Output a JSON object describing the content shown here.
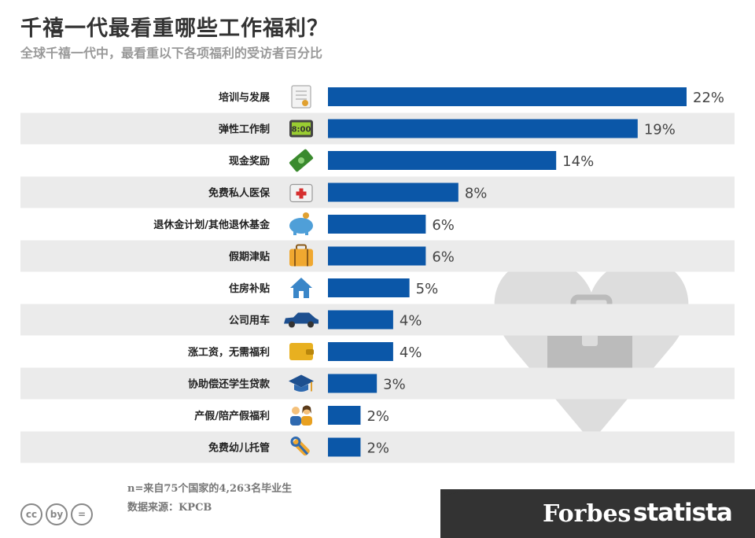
{
  "header": {
    "title": "千禧一代最看重哪些工作福利？",
    "subtitle": "全球千禧一代中，最看重以下各项福利的受访者百分比"
  },
  "chart_data": {
    "type": "bar",
    "orientation": "horizontal",
    "title": "千禧一代最看重哪些工作福利？",
    "subtitle": "全球千禧一代中，最看重以下各项福利的受访者百分比",
    "unit": "%",
    "xlim": [
      0,
      22
    ],
    "categories": [
      "培训与发展",
      "弹性工作制",
      "现金奖励",
      "免费私人医保",
      "退休金计划/其他退休基金",
      "假期津贴",
      "住房补贴",
      "公司用车",
      "涨工资，无需福利",
      "协助偿还学生贷款",
      "产假/陪产假福利",
      "免费幼儿托管"
    ],
    "values": [
      22,
      19,
      14,
      8,
      6,
      6,
      5,
      4,
      4,
      3,
      2,
      2
    ],
    "value_labels": [
      "22%",
      "19%",
      "14%",
      "8%",
      "6%",
      "6%",
      "5%",
      "4%",
      "4%",
      "3%",
      "2%",
      "2%"
    ],
    "icons": [
      "certificate-icon",
      "alarm-clock-icon",
      "cash-icon",
      "first-aid-kit-icon",
      "piggy-bank-icon",
      "suitcase-icon",
      "house-icon",
      "car-icon",
      "wallet-icon",
      "graduation-cap-icon",
      "parents-icon",
      "baby-bottle-icon"
    ]
  },
  "colors": {
    "bar": "#0b57a8",
    "stripe": "#ebebeb",
    "heart": "#dddddd",
    "briefcase": "#bbbbbb",
    "footer": "#333333"
  },
  "notes": {
    "sample": "n=来自75个国家的4,263名毕业生",
    "source": "数据来源：KPCB"
  },
  "footer": {
    "license_icons": [
      "cc",
      "by",
      "="
    ],
    "brand_forbes": "Forbes",
    "brand_statista": "statista"
  }
}
